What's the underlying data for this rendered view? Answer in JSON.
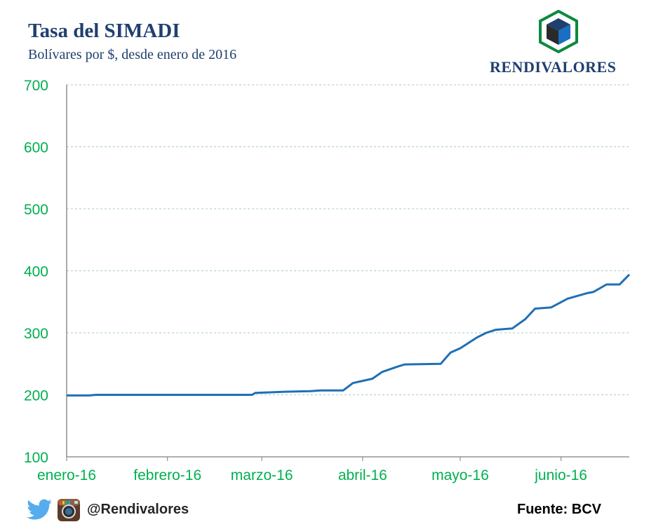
{
  "header": {
    "title": "Tasa del SIMADI",
    "subtitle": "Bolívares por $, desde enero de 2016",
    "brand": "RENDIVALORES"
  },
  "footer": {
    "handle": "@Rendivalores",
    "source": "Fuente: BCV"
  },
  "colors": {
    "line": "#1f6fb5",
    "ticks": "#00b050",
    "title": "#1f3f6e",
    "grid": "#a9c8cf"
  },
  "icons": [
    "twitter-icon",
    "instagram-icon",
    "rendivalores-cube-logo"
  ],
  "chart_data": {
    "type": "line",
    "title": "Tasa del SIMADI",
    "subtitle": "Bolívares por $, desde enero de 2016",
    "xlabel": "",
    "ylabel": "",
    "ylim": [
      100,
      700
    ],
    "yticks": [
      100,
      200,
      300,
      400,
      500,
      600,
      700
    ],
    "xticks": [
      "enero-16",
      "febrero-16",
      "marzo-16",
      "abril-16",
      "mayo-16",
      "junio-16"
    ],
    "xlim": [
      "2016-01-01",
      "2016-06-22"
    ],
    "grid": true,
    "legend": "none",
    "series": [
      {
        "values": [
          [
            "2016-01-01",
            199
          ],
          [
            "2016-01-08",
            199
          ],
          [
            "2016-01-10",
            200
          ],
          [
            "2016-01-20",
            200
          ],
          [
            "2016-02-01",
            200
          ],
          [
            "2016-02-15",
            200
          ],
          [
            "2016-02-25",
            200
          ],
          [
            "2016-02-27",
            203
          ],
          [
            "2016-03-04",
            205
          ],
          [
            "2016-03-12",
            206
          ],
          [
            "2016-03-16",
            207
          ],
          [
            "2016-03-26",
            207
          ],
          [
            "2016-03-28",
            218
          ],
          [
            "2016-04-01",
            224
          ],
          [
            "2016-04-04",
            226
          ],
          [
            "2016-04-07",
            237
          ],
          [
            "2016-04-12",
            246
          ],
          [
            "2016-04-14",
            249
          ],
          [
            "2016-04-24",
            250
          ],
          [
            "2016-04-26",
            267
          ],
          [
            "2016-04-29",
            273
          ],
          [
            "2016-05-04",
            289
          ],
          [
            "2016-05-08",
            301
          ],
          [
            "2016-05-12",
            305
          ],
          [
            "2016-05-17",
            307
          ],
          [
            "2016-05-21",
            320
          ],
          [
            "2016-05-25",
            339
          ],
          [
            "2016-05-30",
            341
          ],
          [
            "2016-05-31",
            345
          ],
          [
            "2016-05-05",
            289
          ],
          [
            "2016-04-30",
            276
          ]
        ]
      }
    ]
  },
  "line_points": [
    [
      "2016-01-01",
      199
    ],
    [
      "2016-01-08",
      199
    ],
    [
      "2016-01-10",
      200
    ],
    [
      "2016-02-01",
      200
    ],
    [
      "2016-02-27",
      200
    ],
    [
      "2016-02-28",
      203
    ],
    [
      "2016-03-08",
      205
    ],
    [
      "2016-03-16",
      206
    ],
    [
      "2016-03-19",
      207
    ],
    [
      "2016-03-26",
      207
    ],
    [
      "2016-03-29",
      219
    ],
    [
      "2016-04-04",
      226
    ],
    [
      "2016-04-07",
      237
    ],
    [
      "2016-04-12",
      246
    ],
    [
      "2016-04-14",
      249
    ],
    [
      "2016-04-25",
      250
    ],
    [
      "2016-04-28",
      268
    ],
    [
      "2016-05-01",
      275
    ],
    [
      "2016-05-06",
      292
    ],
    [
      "2016-05-09",
      300
    ],
    [
      "2016-05-12",
      305
    ],
    [
      "2016-05-17",
      307
    ],
    [
      "2016-05-21",
      322
    ],
    [
      "2016-05-24",
      339
    ],
    [
      "2016-05-29",
      341
    ],
    [
      "2016-06-03",
      355
    ],
    [
      "2016-06-09",
      364
    ],
    [
      "2016-06-11",
      366
    ],
    [
      "2016-06-15",
      378
    ],
    [
      "2016-06-19",
      378
    ],
    [
      "2016-06-22",
      394
    ],
    [
      "2016-06-24",
      399
    ]
  ]
}
